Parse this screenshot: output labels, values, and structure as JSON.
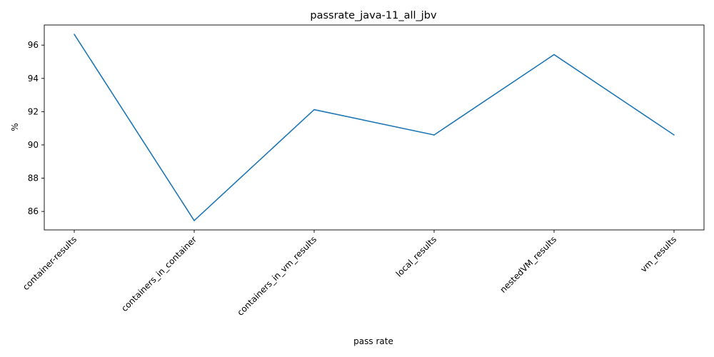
{
  "chart_data": {
    "type": "line",
    "title": "passrate_java-11_all_jbv",
    "xlabel": "pass rate",
    "ylabel": "%",
    "categories": [
      "container-results",
      "containers_in_container",
      "containers_in_vm_results",
      "local_results",
      "nestedVM_results",
      "vm_results"
    ],
    "series": [
      {
        "values": [
          96.65,
          85.45,
          92.12,
          90.6,
          95.43,
          90.6
        ]
      }
    ],
    "yticks": [
      86,
      88,
      90,
      92,
      94,
      96
    ],
    "ylim": [
      84.89,
      97.21
    ],
    "grid": false,
    "line_color": "#1f77b4"
  }
}
